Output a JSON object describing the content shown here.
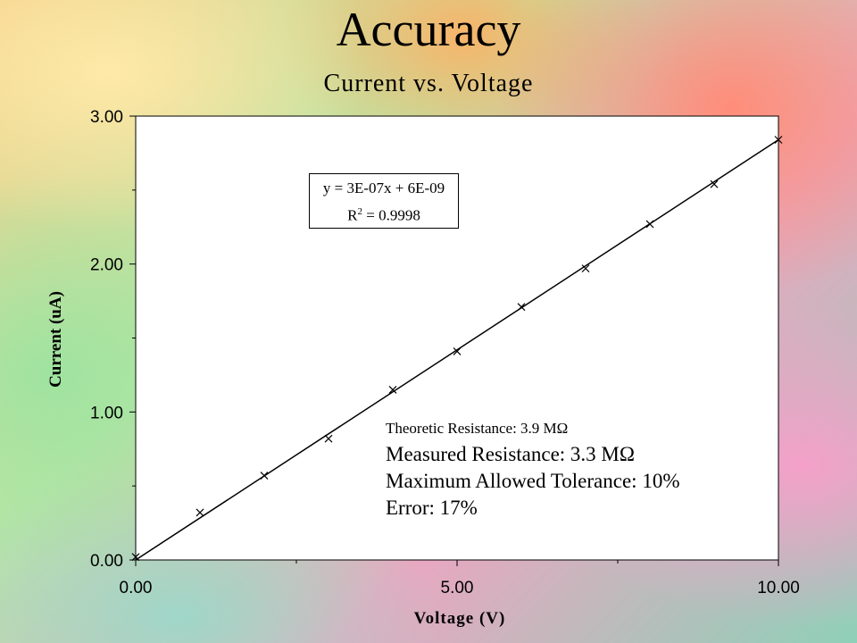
{
  "slide_title": "Accuracy",
  "notes": {
    "theoretic": "Theoretic Resistance: 3.9 MΩ",
    "measured": "Measured Resistance: 3.3 MΩ",
    "tolerance": "Maximum Allowed Tolerance: 10%",
    "error": "Error: 17%"
  },
  "chart_data": {
    "type": "scatter",
    "title": "Current vs. Voltage",
    "xlabel": "Voltage (V)",
    "ylabel": "Current (uA)",
    "xlim": [
      0,
      10
    ],
    "ylim": [
      0,
      3
    ],
    "xticks": [
      "0.00",
      "5.00",
      "10.00"
    ],
    "yticks": [
      "0.00",
      "1.00",
      "2.00",
      "3.00"
    ],
    "grid": false,
    "series": [
      {
        "marker": "x",
        "x": [
          0,
          1,
          2,
          3,
          4,
          5,
          6,
          7,
          8,
          9,
          10
        ],
        "y": [
          0.02,
          0.32,
          0.57,
          0.82,
          1.15,
          1.41,
          1.71,
          1.97,
          2.27,
          2.54,
          2.84
        ]
      }
    ],
    "trendline": {
      "type": "linear",
      "equation": "y = 3E-07x + 6E-09",
      "r2_label": "R",
      "r2_sup": "2",
      "r2_value": " = 0.9998",
      "y_start": 0.0,
      "y_end": 2.84
    },
    "colors": {
      "plot_bg": "#ffffff",
      "marks": "#000000"
    }
  }
}
